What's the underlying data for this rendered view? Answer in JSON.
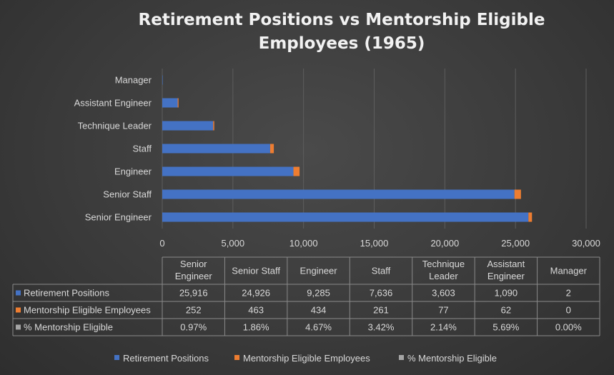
{
  "chart_data": {
    "type": "bar",
    "orientation": "horizontal",
    "stacked": true,
    "title": "Retirement Positions vs Mentorship Eligible Employees (1965)",
    "title_lines": [
      "Retirement Positions vs Mentorship Eligible",
      "Employees (1965)"
    ],
    "categories": [
      "Senior Engineer",
      "Senior Staff",
      "Engineer",
      "Staff",
      "Technique Leader",
      "Assistant Engineer",
      "Manager"
    ],
    "table_headers": [
      [
        "Senior",
        "Engineer"
      ],
      [
        "Senior Staff"
      ],
      [
        "Engineer"
      ],
      [
        "Staff"
      ],
      [
        "Technique",
        "Leader"
      ],
      [
        "Assistant",
        "Engineer"
      ],
      [
        "Manager"
      ]
    ],
    "series": [
      {
        "name": "Retirement Positions",
        "color": "#4472C4",
        "values": [
          25916,
          24926,
          9285,
          7636,
          3603,
          1090,
          2
        ],
        "labels": [
          "25,916",
          "24,926",
          "9,285",
          "7,636",
          "3,603",
          "1,090",
          "2"
        ]
      },
      {
        "name": "Mentorship Eligible Employees",
        "color": "#ED7D31",
        "values": [
          252,
          463,
          434,
          261,
          77,
          62,
          0
        ],
        "labels": [
          "252",
          "463",
          "434",
          "261",
          "77",
          "62",
          "0"
        ]
      },
      {
        "name": "% Mentorship Eligible",
        "color": "#A5A5A5",
        "values": [
          0.0097,
          0.0186,
          0.0467,
          0.0342,
          0.0214,
          0.0569,
          0.0
        ],
        "labels": [
          "0.97%",
          "1.86%",
          "4.67%",
          "3.42%",
          "2.14%",
          "5.69%",
          "0.00%"
        ]
      }
    ],
    "xlim": [
      0,
      30000
    ],
    "xticks": [
      0,
      5000,
      10000,
      15000,
      20000,
      25000,
      30000
    ],
    "xtick_labels": [
      "0",
      "5,000",
      "10,000",
      "15,000",
      "20,000",
      "25,000",
      "30,000"
    ],
    "grid": true,
    "data_table": true,
    "legend_position": "bottom"
  }
}
